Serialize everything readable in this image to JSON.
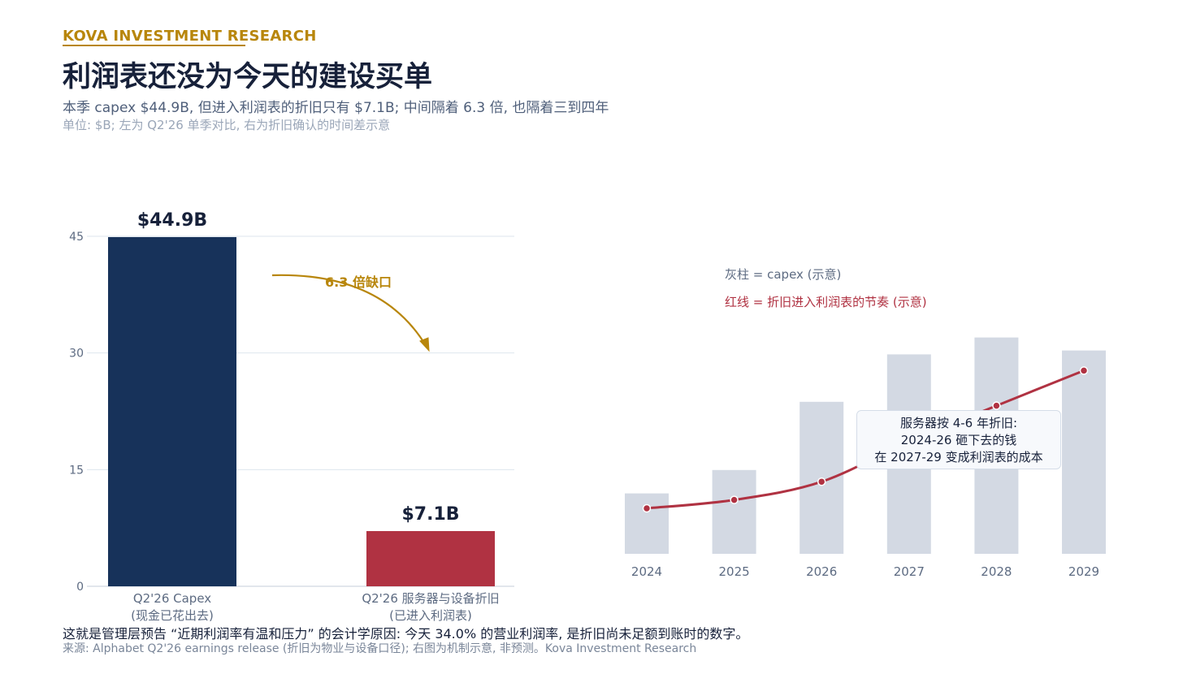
{
  "header": {
    "brand": "KOVA INVESTMENT RESEARCH",
    "title": "利润表还没为今天的建设买单",
    "subtitle": "本季 capex $44.9B, 但进入利润表的折旧只有 $7.1B; 中间隔着 6.3 倍, 也隔着三到四年",
    "unit_note": "单位: $B; 左为 Q2'26 单季对比, 右为折旧确认的时间差示意"
  },
  "footer": {
    "note": "这就是管理层预告 “近期利润率有温和压力” 的会计学原因: 今天 34.0% 的营业利润率, 是折旧尚未足额到账时的数字。",
    "source": "来源: Alphabet Q2'26 earnings release (折旧为物业与设备口径); 右图为机制示意, 非预测。Kova Investment Research"
  },
  "colors": {
    "navy": "#17325a",
    "red": "#b03242",
    "gold": "#b8860b",
    "gray_bar": "#d3d9e3",
    "grid": "#dde6ee",
    "axis_text": "#5d6b82"
  },
  "chart_data": [
    {
      "type": "bar",
      "categories": [
        "Q2'26 Capex\n(现金已花出去)",
        "Q2'26 服务器与设备折旧\n(已进入利润表)"
      ],
      "values": [
        44.9,
        7.1
      ],
      "data_labels": [
        "$44.9B",
        "$7.1B"
      ],
      "yticks": [
        0,
        15,
        30,
        45
      ],
      "ylim": [
        0,
        45
      ],
      "grid": true,
      "annotation": "6.3 倍缺口"
    },
    {
      "type": "bar+line",
      "categories": [
        "2024",
        "2025",
        "2026",
        "2027",
        "2028",
        "2029"
      ],
      "series": [
        {
          "name": "灰柱 = capex (示意)",
          "kind": "bar",
          "values": [
            9.3,
            12.9,
            23.4,
            30.7,
            33.3,
            31.3
          ]
        },
        {
          "name": "红线 = 折旧进入利润表的节奏 (示意)",
          "kind": "line",
          "values": [
            7.0,
            8.3,
            11.1,
            17.3,
            22.8,
            28.2
          ]
        }
      ],
      "ylim": [
        0,
        40
      ],
      "annotation": [
        "服务器按 4-6 年折旧:",
        "2024-26 砸下去的钱",
        "在 2027-29 变成利润表的成本"
      ]
    }
  ]
}
